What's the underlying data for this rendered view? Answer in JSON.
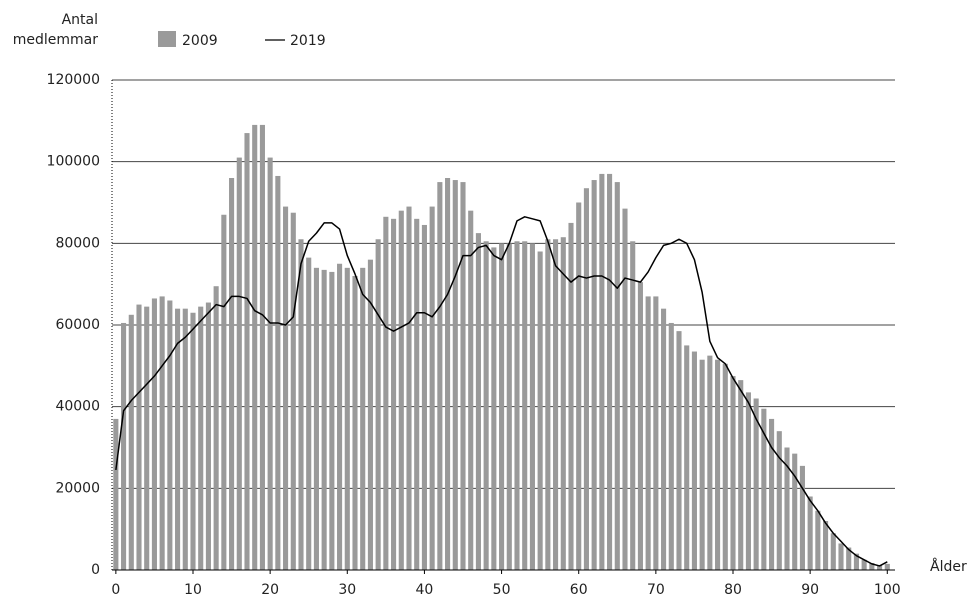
{
  "chart_data": {
    "type": "bar",
    "ylabel": [
      "Antal",
      "medlemmar"
    ],
    "xlabel": "Ålder",
    "x": [
      0,
      1,
      2,
      3,
      4,
      5,
      6,
      7,
      8,
      9,
      10,
      11,
      12,
      13,
      14,
      15,
      16,
      17,
      18,
      19,
      20,
      21,
      22,
      23,
      24,
      25,
      26,
      27,
      28,
      29,
      30,
      31,
      32,
      33,
      34,
      35,
      36,
      37,
      38,
      39,
      40,
      41,
      42,
      43,
      44,
      45,
      46,
      47,
      48,
      49,
      50,
      51,
      52,
      53,
      54,
      55,
      56,
      57,
      58,
      59,
      60,
      61,
      62,
      63,
      64,
      65,
      66,
      67,
      68,
      69,
      70,
      71,
      72,
      73,
      74,
      75,
      76,
      77,
      78,
      79,
      80,
      81,
      82,
      83,
      84,
      85,
      86,
      87,
      88,
      89,
      90,
      91,
      92,
      93,
      94,
      95,
      96,
      97,
      98,
      99,
      100
    ],
    "series": [
      {
        "name": "2009",
        "type": "bar",
        "color": "#9a9a9a",
        "values": [
          37000,
          60500,
          62500,
          65000,
          64500,
          66500,
          67000,
          66000,
          64000,
          64000,
          63000,
          64500,
          65500,
          69500,
          87000,
          96000,
          101000,
          107000,
          109000,
          109000,
          101000,
          96500,
          89000,
          87500,
          81000,
          76500,
          74000,
          73500,
          73000,
          75000,
          74000,
          72000,
          74000,
          76000,
          81000,
          86500,
          86000,
          88000,
          89000,
          86000,
          84500,
          89000,
          95000,
          96000,
          95500,
          95000,
          88000,
          82500,
          80500,
          79000,
          80000,
          80000,
          80500,
          80500,
          80000,
          78000,
          81000,
          81000,
          81500,
          85000,
          90000,
          93500,
          95500,
          97000,
          97000,
          95000,
          88500,
          80500,
          70500,
          67000,
          67000,
          64000,
          60500,
          58500,
          55000,
          53500,
          51500,
          52500,
          51500,
          50500,
          47500,
          46500,
          43500,
          42000,
          39500,
          37000,
          34000,
          30000,
          28500,
          25500,
          18000,
          14500,
          12000,
          9000,
          6500,
          5500,
          4000,
          2500,
          1700,
          1200,
          1500
        ]
      },
      {
        "name": "2019",
        "type": "line",
        "color": "#000000",
        "values": [
          24500,
          39000,
          41500,
          43500,
          45500,
          47500,
          50000,
          52500,
          55500,
          57000,
          59000,
          61000,
          63000,
          65000,
          64500,
          67000,
          67000,
          66500,
          63500,
          62500,
          60500,
          60500,
          60000,
          62000,
          75000,
          80500,
          82500,
          85000,
          85000,
          83500,
          77000,
          72500,
          67500,
          65500,
          62500,
          59500,
          58500,
          59500,
          60500,
          63000,
          63000,
          62000,
          64500,
          67500,
          72000,
          77000,
          77000,
          79000,
          79500,
          77000,
          76000,
          80000,
          85500,
          86500,
          86000,
          85500,
          80500,
          74500,
          72500,
          70500,
          72000,
          71500,
          72000,
          72000,
          71000,
          69000,
          71500,
          71000,
          70500,
          73000,
          76500,
          79500,
          80000,
          81000,
          80000,
          76000,
          68000,
          56000,
          52000,
          50500,
          47000,
          44000,
          41000,
          37000,
          33500,
          30000,
          27500,
          25500,
          23000,
          20000,
          17000,
          14500,
          11500,
          9000,
          7000,
          5000,
          3500,
          2500,
          1500,
          1000,
          2000
        ]
      }
    ],
    "xlim": [
      -0.5,
      101
    ],
    "xticks": [
      0,
      10,
      20,
      30,
      40,
      50,
      60,
      70,
      80,
      90,
      100
    ],
    "ylim": [
      0,
      120000
    ],
    "yticks": [
      0,
      20000,
      40000,
      60000,
      80000,
      100000,
      120000
    ],
    "grid": true
  }
}
